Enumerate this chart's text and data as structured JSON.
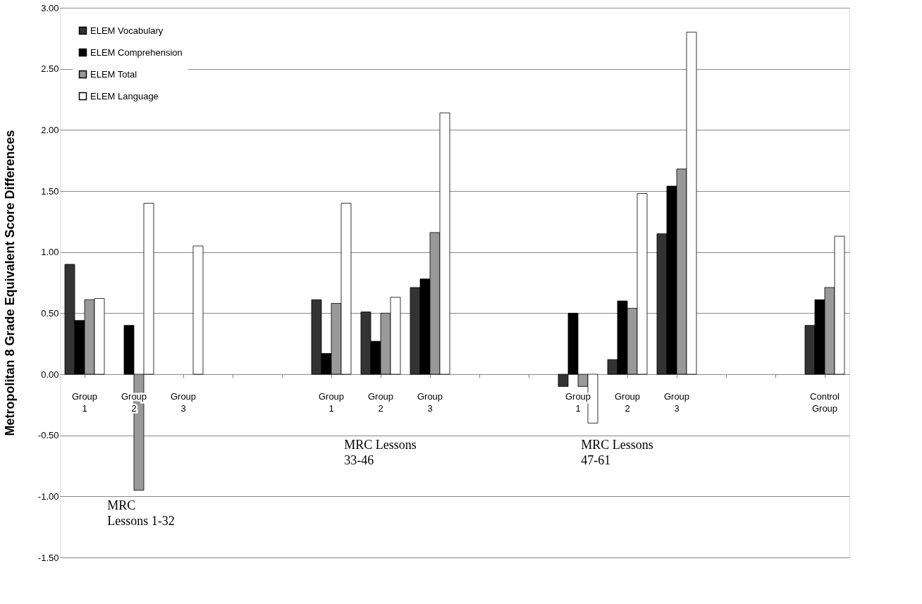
{
  "chart_data": {
    "type": "bar",
    "ylabel": "Metropolitan 8 Grade Equivalent Score Differences",
    "categories": [
      "Group 1",
      "Group 2",
      "Group 3",
      null,
      null,
      "Group 1",
      "Group 2",
      "Group 3",
      null,
      null,
      "Group 1",
      "Group 2",
      "Group 3",
      null,
      null,
      "Control Group"
    ],
    "series": [
      {
        "name": "ELEM Vocabulary",
        "color": "#333333",
        "values": [
          0.9,
          null,
          null,
          null,
          null,
          0.61,
          0.51,
          0.71,
          null,
          null,
          -0.1,
          0.12,
          1.15,
          null,
          null,
          0.4
        ]
      },
      {
        "name": "ELEM Comprehension",
        "color": "#000000",
        "values": [
          0.44,
          0.4,
          null,
          null,
          null,
          0.17,
          0.27,
          0.78,
          null,
          null,
          0.5,
          0.6,
          1.54,
          null,
          null,
          0.61
        ]
      },
      {
        "name": "ELEM Total",
        "color": "#999999",
        "values": [
          0.61,
          -0.95,
          null,
          null,
          null,
          0.58,
          0.5,
          1.16,
          null,
          null,
          -0.1,
          0.54,
          1.68,
          null,
          null,
          0.71
        ]
      },
      {
        "name": "ELEM Language",
        "color": "#ffffff",
        "values": [
          0.62,
          1.4,
          1.05,
          null,
          null,
          1.4,
          0.63,
          2.14,
          null,
          null,
          -0.4,
          1.48,
          2.8,
          null,
          null,
          1.13
        ]
      }
    ],
    "ylim": [
      -1.5,
      3.0
    ],
    "yticks": [
      {
        "value": -1.5,
        "label": "-1.50"
      },
      {
        "value": -1.0,
        "label": "-1.00"
      },
      {
        "value": -0.5,
        "label": "-0.50"
      },
      {
        "value": 0,
        "label": "0.00"
      },
      {
        "value": 0.5,
        "label": "0.50"
      },
      {
        "value": 1.0,
        "label": "1.00"
      },
      {
        "value": 1.5,
        "label": "1.50"
      },
      {
        "value": 2.0,
        "label": "2.00"
      },
      {
        "value": 2.5,
        "label": "2.50"
      },
      {
        "value": 3.0,
        "label": "3.00"
      }
    ],
    "grid": "y",
    "legend": "top left",
    "annotations": [
      "MRC\nLessons 1-32",
      "MRC Lessons\n33-46",
      "MRC Lessons\n47-61"
    ]
  }
}
